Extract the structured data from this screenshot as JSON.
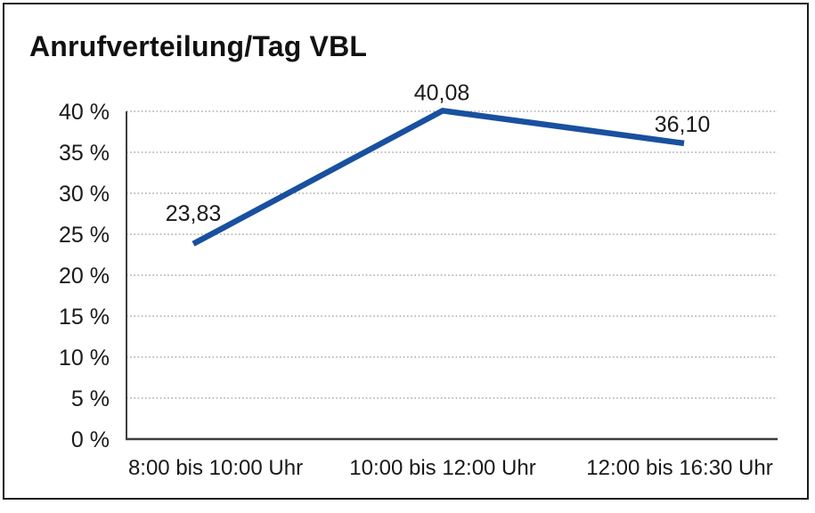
{
  "title": "Anrufverteilung/Tag VBL",
  "chart_data": {
    "type": "line",
    "title": "Anrufverteilung/Tag VBL",
    "categories": [
      "8:00 bis 10:00 Uhr",
      "10:00 bis 12:00 Uhr",
      "12:00 bis 16:30 Uhr"
    ],
    "series": [
      {
        "name": "Anrufverteilung/Tag VBL",
        "values": [
          23.83,
          40.08,
          36.1
        ]
      }
    ],
    "data_labels": [
      "23,83",
      "40,08",
      "36,10"
    ],
    "yticks": [
      0,
      5,
      10,
      15,
      20,
      25,
      30,
      35,
      40
    ],
    "ytick_labels": [
      "0 %",
      "5 %",
      "10 %",
      "15 %",
      "20 %",
      "25 %",
      "30 %",
      "35 %",
      "40 %"
    ],
    "ylim": [
      0,
      40
    ],
    "xlabel": "",
    "ylabel": "",
    "grid": "horizontal-dotted",
    "legend": "none",
    "colors": {
      "line": "#19509f",
      "grid": "#999999",
      "axis": "#3d3d3d",
      "text": "#1a1a1a",
      "frame": "#1a1a1a",
      "background": "#ffffff"
    }
  }
}
